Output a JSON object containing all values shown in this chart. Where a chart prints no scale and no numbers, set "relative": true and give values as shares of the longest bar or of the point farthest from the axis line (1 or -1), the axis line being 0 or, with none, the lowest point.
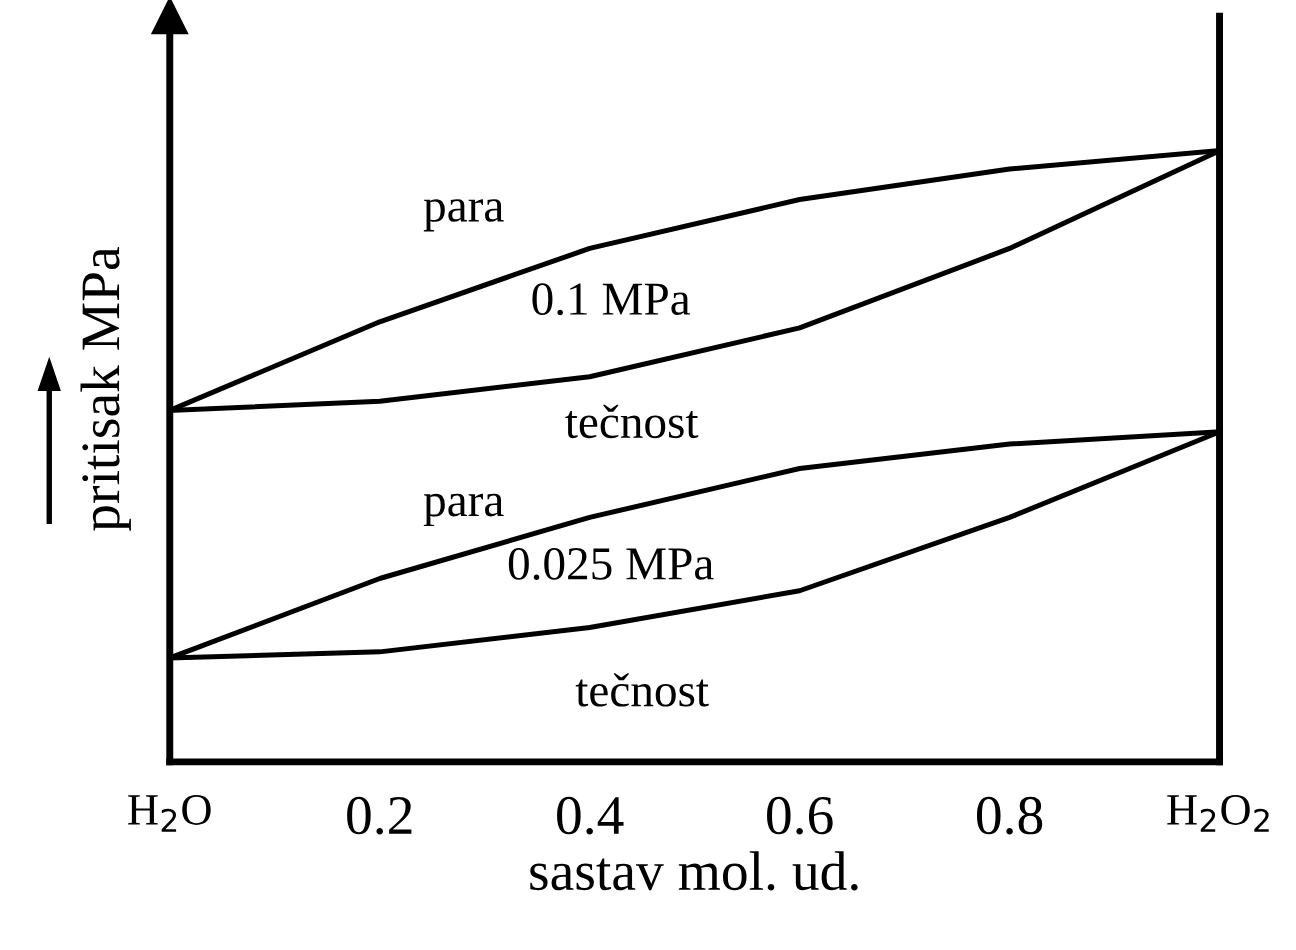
{
  "chart_data": {
    "type": "line",
    "relative": true,
    "xlabel": "sastav mol. ud.",
    "ylabel": "pritisak MPa",
    "xlim": [
      0,
      1
    ],
    "xticks": [
      0.2,
      0.4,
      0.6,
      0.8
    ],
    "x": [
      0,
      0.2,
      0.4,
      0.6,
      0.8,
      1
    ],
    "series": [
      {
        "color": "#000000",
        "values": [
          0.575,
          0.72,
          0.84,
          0.92,
          0.97,
          1
        ]
      },
      {
        "color": "#000000",
        "values": [
          0.575,
          0.59,
          0.63,
          0.71,
          0.84,
          1
        ]
      },
      {
        "color": "#000000",
        "values": [
          0.17,
          0.3,
          0.4,
          0.48,
          0.52,
          0.54
        ]
      },
      {
        "color": "#000000",
        "values": [
          0.17,
          0.18,
          0.22,
          0.28,
          0.4,
          0.54
        ]
      }
    ],
    "annotations": [
      "para",
      "0.1 MPa",
      "tečnost",
      "para",
      "0.025 MPa",
      "tečnost",
      "H$_{2}$O",
      "H$_{2}$O$_{2}$"
    ],
    "grid": false,
    "legend": false
  }
}
